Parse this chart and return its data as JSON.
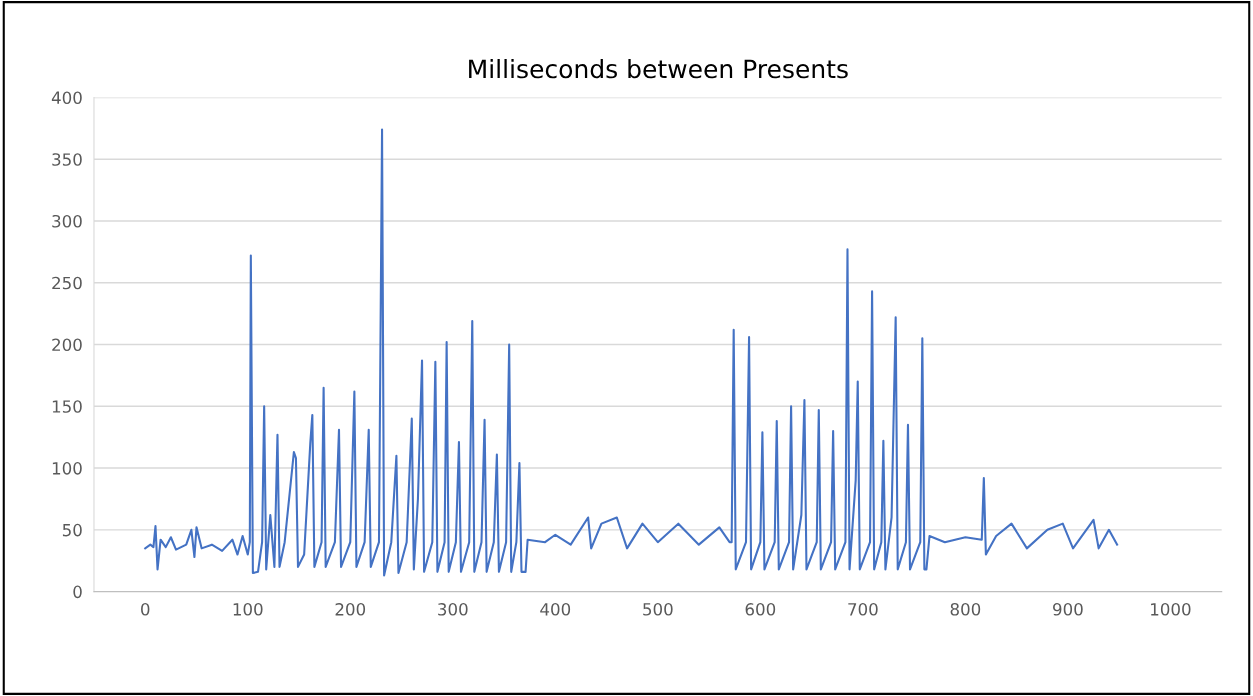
{
  "chart_data": {
    "type": "line",
    "title": "Milliseconds between Presents",
    "x": [
      0,
      5,
      8,
      10,
      12,
      15,
      20,
      25,
      30,
      40,
      45,
      48,
      50,
      55,
      65,
      75,
      85,
      90,
      95,
      100,
      102,
      103,
      105,
      110,
      114,
      116,
      118,
      122,
      126,
      129,
      131,
      136,
      145,
      147,
      149,
      155,
      161,
      163,
      165,
      172,
      174,
      176,
      185,
      189,
      191,
      200,
      204,
      206,
      214,
      218,
      220,
      228,
      231,
      233,
      240,
      245,
      247,
      255,
      260,
      262,
      266,
      270,
      272,
      280,
      283,
      285,
      292,
      294,
      296,
      303,
      306,
      308,
      316,
      319,
      321,
      328,
      331,
      333,
      340,
      343,
      345,
      352,
      355,
      357,
      362,
      365,
      367,
      371,
      373,
      390,
      400,
      415,
      432,
      435,
      445,
      460,
      470,
      485,
      500,
      520,
      540,
      560,
      570,
      572,
      574,
      576,
      586,
      589,
      591,
      600,
      602,
      604,
      614,
      616,
      618,
      628,
      630,
      632,
      640,
      643,
      645,
      655,
      657,
      659,
      669,
      671,
      673,
      683,
      685,
      687,
      693,
      695,
      697,
      707,
      709,
      711,
      718,
      720,
      722,
      728,
      732,
      734,
      742,
      744,
      746,
      756,
      758,
      760,
      762,
      765,
      780,
      800,
      816,
      818,
      820,
      830,
      845,
      860,
      880,
      895,
      905,
      925,
      930,
      940,
      948
    ],
    "series": [
      {
        "color": "#4472c4",
        "values": [
          35,
          38,
          36,
          53,
          18,
          42,
          36,
          44,
          34,
          38,
          50,
          28,
          52,
          35,
          38,
          33,
          42,
          30,
          45,
          30,
          40,
          272,
          15,
          16,
          40,
          150,
          18,
          62,
          20,
          127,
          20,
          40,
          113,
          108,
          20,
          30,
          120,
          143,
          20,
          40,
          165,
          20,
          40,
          131,
          20,
          40,
          162,
          20,
          40,
          131,
          20,
          40,
          374,
          13,
          40,
          110,
          15,
          40,
          140,
          18,
          75,
          187,
          16,
          40,
          186,
          16,
          40,
          202,
          16,
          40,
          121,
          16,
          40,
          219,
          16,
          40,
          139,
          16,
          40,
          111,
          16,
          40,
          200,
          16,
          40,
          104,
          16,
          16,
          42,
          40,
          46,
          38,
          60,
          35,
          55,
          60,
          35,
          55,
          40,
          55,
          38,
          52,
          40,
          40,
          212,
          18,
          40,
          206,
          18,
          40,
          129,
          18,
          40,
          138,
          18,
          40,
          150,
          18,
          62,
          155,
          18,
          40,
          147,
          18,
          40,
          130,
          18,
          40,
          277,
          18,
          90,
          170,
          18,
          40,
          243,
          18,
          40,
          122,
          18,
          60,
          222,
          18,
          40,
          135,
          18,
          40,
          205,
          18,
          18,
          45,
          40,
          44,
          42,
          92,
          30,
          45,
          55,
          35,
          50,
          55,
          35,
          58,
          35,
          50,
          38
        ]
      }
    ],
    "xlim": [
      -50,
      1050
    ],
    "ylim": [
      0,
      400
    ],
    "xticks": [
      0,
      100,
      200,
      300,
      400,
      500,
      600,
      700,
      800,
      900,
      1000
    ],
    "yticks": [
      0,
      50,
      100,
      150,
      200,
      250,
      300,
      350,
      400
    ],
    "grid": "y"
  }
}
